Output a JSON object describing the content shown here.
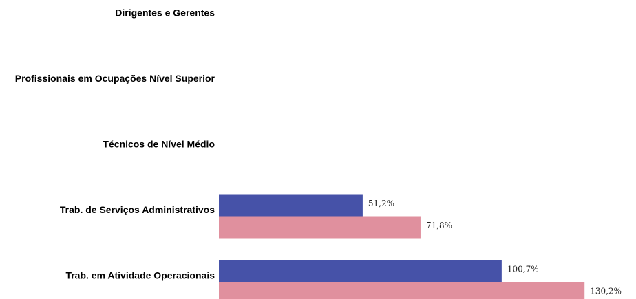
{
  "chart_data": {
    "type": "bar",
    "orientation": "horizontal",
    "categories": [
      "Dirigentes e Gerentes",
      "Profissionais em Ocupações Nível Superior",
      "Técnicos de Nível Médio",
      "Trab. de Serviços Administrativos",
      "Trab. em Atividade Operacionais"
    ],
    "series": [
      {
        "color": "#4652a8",
        "values": [
          null,
          null,
          null,
          51.2,
          100.7
        ],
        "value_labels": [
          null,
          null,
          null,
          "51,2%",
          "100,7%"
        ]
      },
      {
        "color": "#e0909e",
        "values": [
          null,
          null,
          null,
          71.8,
          130.2
        ],
        "value_labels": [
          null,
          null,
          null,
          "71,8%",
          "130,2%"
        ]
      }
    ],
    "xlim": [
      0,
      150
    ]
  }
}
